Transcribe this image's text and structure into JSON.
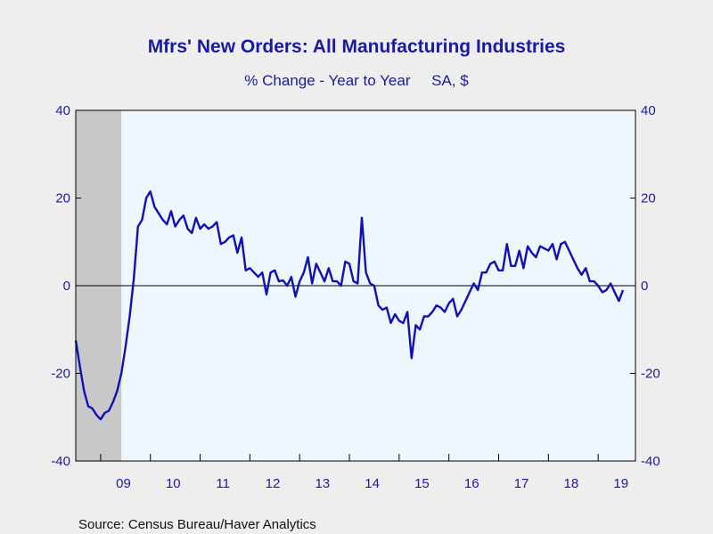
{
  "chart_data": {
    "type": "line",
    "title": "Mfrs' New Orders: All Manufacturing Industries",
    "subtitle": "% Change - Year to Year     SA, $",
    "source": "Source:  Census Bureau/Haver Analytics",
    "ylim": [
      -40,
      40
    ],
    "y_ticks": [
      "40",
      "20",
      "0",
      "-20",
      "-40"
    ],
    "y_tick_values": [
      40,
      20,
      0,
      -20,
      -40
    ],
    "x_ticks": [
      "09",
      "10",
      "11",
      "12",
      "13",
      "14",
      "15",
      "16",
      "17",
      "18",
      "19"
    ],
    "x_range": [
      "2008-07",
      "2019-10"
    ],
    "recession_shading": {
      "start": "2008-07",
      "end": "2009-06"
    },
    "grid": false,
    "zero_line": true,
    "colors": {
      "line": "#1010b8",
      "plot_background": "#eef6ff",
      "recession": "#c8c8c8",
      "text": "#1a1aa6",
      "page_background": "#eeeeee"
    },
    "series": [
      {
        "x_start": "2008-07",
        "frequency": "monthly",
        "values": [
          -12.5,
          -18.5,
          -24,
          -27.5,
          -28,
          -29.5,
          -30.5,
          -29,
          -28.5,
          -26.5,
          -24,
          -20,
          -14,
          -7,
          1.5,
          13.5,
          15,
          20,
          21.5,
          18,
          16.5,
          15,
          14,
          17,
          13.5,
          15,
          16,
          13,
          12,
          15.5,
          13,
          14,
          13,
          13.5,
          14.5,
          9.5,
          10,
          11,
          11.5,
          7.5,
          11,
          3.5,
          4,
          3,
          2,
          3,
          -2,
          3,
          3.5,
          1,
          1.2,
          0,
          2,
          -2.5,
          1,
          3,
          6.5,
          0.5,
          5,
          3,
          1,
          4,
          1,
          1,
          0,
          5.5,
          5,
          1,
          0.5,
          15.5,
          3,
          0.5,
          0,
          -4.5,
          -5.5,
          -5,
          -8.5,
          -6.5,
          -8,
          -8.5,
          -6,
          -16.5,
          -9,
          -10,
          -7,
          -7,
          -6,
          -4.5,
          -5,
          -6,
          -4,
          -3,
          -7,
          -5.5,
          -3.5,
          -1.5,
          0.5,
          -1,
          3,
          3,
          5,
          5.5,
          3.5,
          3.5,
          9.5,
          4.5,
          4.5,
          8,
          4,
          9,
          7.5,
          6.5,
          9,
          8.5,
          8,
          9.5,
          6,
          9.5,
          10,
          8,
          6,
          4,
          2.5,
          4,
          1,
          1,
          0,
          -1.5,
          -1,
          0.5,
          -1.5,
          -3.5,
          -1
        ]
      }
    ]
  }
}
